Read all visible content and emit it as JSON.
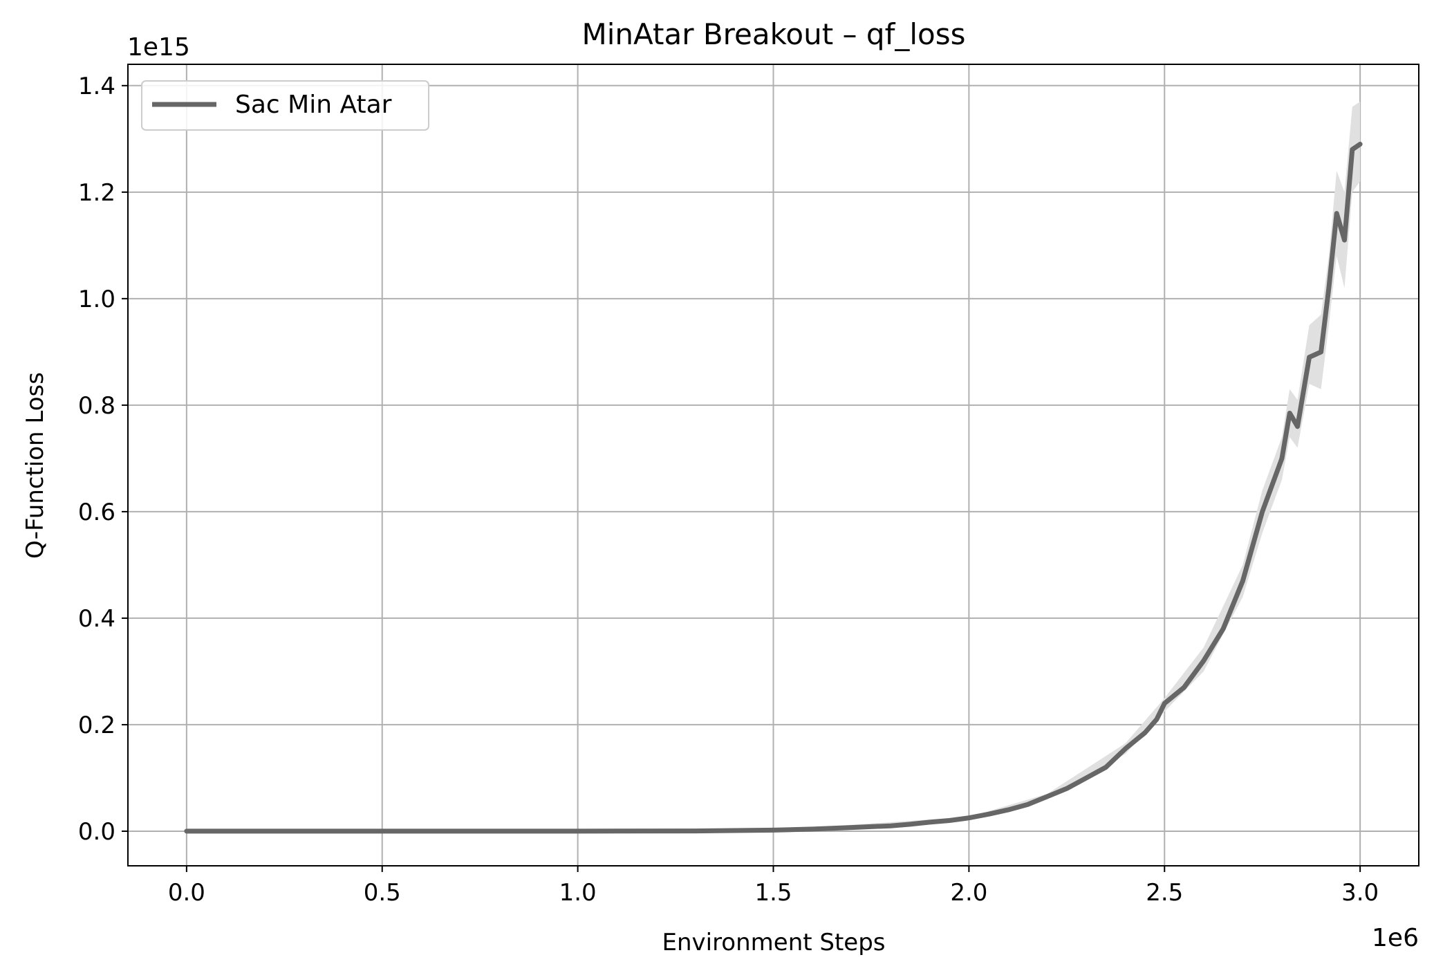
{
  "chart_data": {
    "type": "line",
    "title": "MinAtar Breakout – qf_loss",
    "xlabel": "Environment Steps",
    "ylabel": "Q-Function Loss",
    "x_offset_label": "1e6",
    "y_offset_label": "1e15",
    "xlim": [
      -0.15,
      3.15
    ],
    "ylim": [
      -0.065,
      1.44
    ],
    "x_ticks": [
      0.0,
      0.5,
      1.0,
      1.5,
      2.0,
      2.5,
      3.0
    ],
    "x_tick_labels": [
      "0.0",
      "0.5",
      "1.0",
      "1.5",
      "2.0",
      "2.5",
      "3.0"
    ],
    "y_ticks": [
      0.0,
      0.2,
      0.4,
      0.6,
      0.8,
      1.0,
      1.2,
      1.4
    ],
    "y_tick_labels": [
      "0.0",
      "0.2",
      "0.4",
      "0.6",
      "0.8",
      "1.0",
      "1.2",
      "1.4"
    ],
    "grid": true,
    "legend_position": "top-left",
    "colors": {
      "line": "#666666",
      "band": "#e0e0e0",
      "grid": "#b0b0b0",
      "axis": "#000000"
    },
    "series": [
      {
        "name": "Sac Min Atar",
        "points": [
          [
            0.0,
            0.0
          ],
          [
            0.5,
            0.0
          ],
          [
            1.0,
            0.0
          ],
          [
            1.3,
            0.0005
          ],
          [
            1.5,
            0.002
          ],
          [
            1.6,
            0.004
          ],
          [
            1.7,
            0.007
          ],
          [
            1.8,
            0.01
          ],
          [
            1.85,
            0.013
          ],
          [
            1.9,
            0.017
          ],
          [
            1.95,
            0.02
          ],
          [
            2.0,
            0.025
          ],
          [
            2.05,
            0.032
          ],
          [
            2.1,
            0.04
          ],
          [
            2.15,
            0.05
          ],
          [
            2.2,
            0.065
          ],
          [
            2.25,
            0.08
          ],
          [
            2.3,
            0.1
          ],
          [
            2.35,
            0.12
          ],
          [
            2.4,
            0.155
          ],
          [
            2.45,
            0.185
          ],
          [
            2.48,
            0.21
          ],
          [
            2.5,
            0.24
          ],
          [
            2.55,
            0.27
          ],
          [
            2.6,
            0.32
          ],
          [
            2.65,
            0.38
          ],
          [
            2.7,
            0.47
          ],
          [
            2.75,
            0.6
          ],
          [
            2.8,
            0.7
          ],
          [
            2.82,
            0.785
          ],
          [
            2.84,
            0.76
          ],
          [
            2.87,
            0.89
          ],
          [
            2.9,
            0.9
          ],
          [
            2.92,
            1.02
          ],
          [
            2.94,
            1.16
          ],
          [
            2.96,
            1.11
          ],
          [
            2.98,
            1.28
          ],
          [
            3.0,
            1.29
          ]
        ],
        "band": [
          [
            0.0,
            0.0,
            0.0
          ],
          [
            1.5,
            0.002,
            0.002
          ],
          [
            2.0,
            0.023,
            0.027
          ],
          [
            2.2,
            0.06,
            0.07
          ],
          [
            2.4,
            0.145,
            0.165
          ],
          [
            2.5,
            0.225,
            0.25
          ],
          [
            2.6,
            0.3,
            0.345
          ],
          [
            2.7,
            0.44,
            0.5
          ],
          [
            2.75,
            0.56,
            0.64
          ],
          [
            2.8,
            0.66,
            0.74
          ],
          [
            2.82,
            0.74,
            0.83
          ],
          [
            2.84,
            0.72,
            0.81
          ],
          [
            2.87,
            0.84,
            0.95
          ],
          [
            2.9,
            0.83,
            0.97
          ],
          [
            2.92,
            0.95,
            1.08
          ],
          [
            2.94,
            1.08,
            1.24
          ],
          [
            2.96,
            1.02,
            1.2
          ],
          [
            2.98,
            1.2,
            1.36
          ],
          [
            3.0,
            1.22,
            1.37
          ]
        ]
      }
    ]
  }
}
